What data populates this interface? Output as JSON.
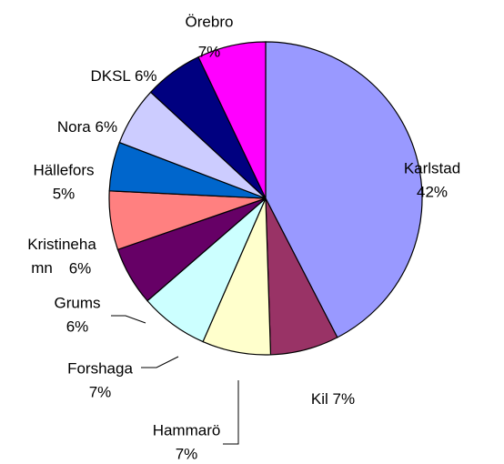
{
  "chart_data": {
    "type": "pie",
    "categories": [
      "Karlstad",
      "Kil",
      "Hammarö",
      "Forshaga",
      "Grums",
      "Kristinehamn",
      "Hällefors",
      "Nora",
      "DKSL",
      "Örebro"
    ],
    "values": [
      42,
      7,
      7,
      7,
      6,
      6,
      5,
      6,
      6,
      7
    ],
    "value_labels": [
      "42%",
      "7%",
      "7%",
      "7%",
      "6%",
      "6%",
      "5%",
      "6%",
      "6%",
      "7%"
    ],
    "colors": [
      "#9999ff",
      "#993366",
      "#ffffcc",
      "#ccffff",
      "#660066",
      "#ff8080",
      "#0066cc",
      "#ccccff",
      "#000080",
      "#ff00ff"
    ]
  }
}
